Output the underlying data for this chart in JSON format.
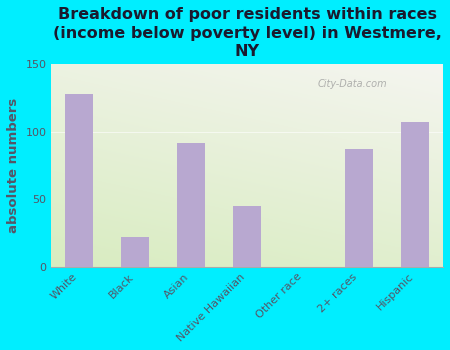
{
  "title": "Breakdown of poor residents within races\n(income below poverty level) in Westmere,\nNY",
  "categories": [
    "White",
    "Black",
    "Asian",
    "Native Hawaiian",
    "Other race",
    "2+ races",
    "Hispanic"
  ],
  "values": [
    128,
    22,
    92,
    45,
    0,
    87,
    107
  ],
  "bar_color": "#b8a8d0",
  "ylabel": "absolute numbers",
  "ylim": [
    0,
    150
  ],
  "yticks": [
    0,
    50,
    100,
    150
  ],
  "bg_color_outer": "#00eeff",
  "bg_color_plot_top": "#f5f5f0",
  "bg_color_plot_bottom": "#d8ecc0",
  "watermark": "City-Data.com",
  "title_fontsize": 11.5,
  "ylabel_fontsize": 9.5,
  "tick_fontsize": 8,
  "title_color": "#1a1a2e",
  "label_color": "#555566"
}
